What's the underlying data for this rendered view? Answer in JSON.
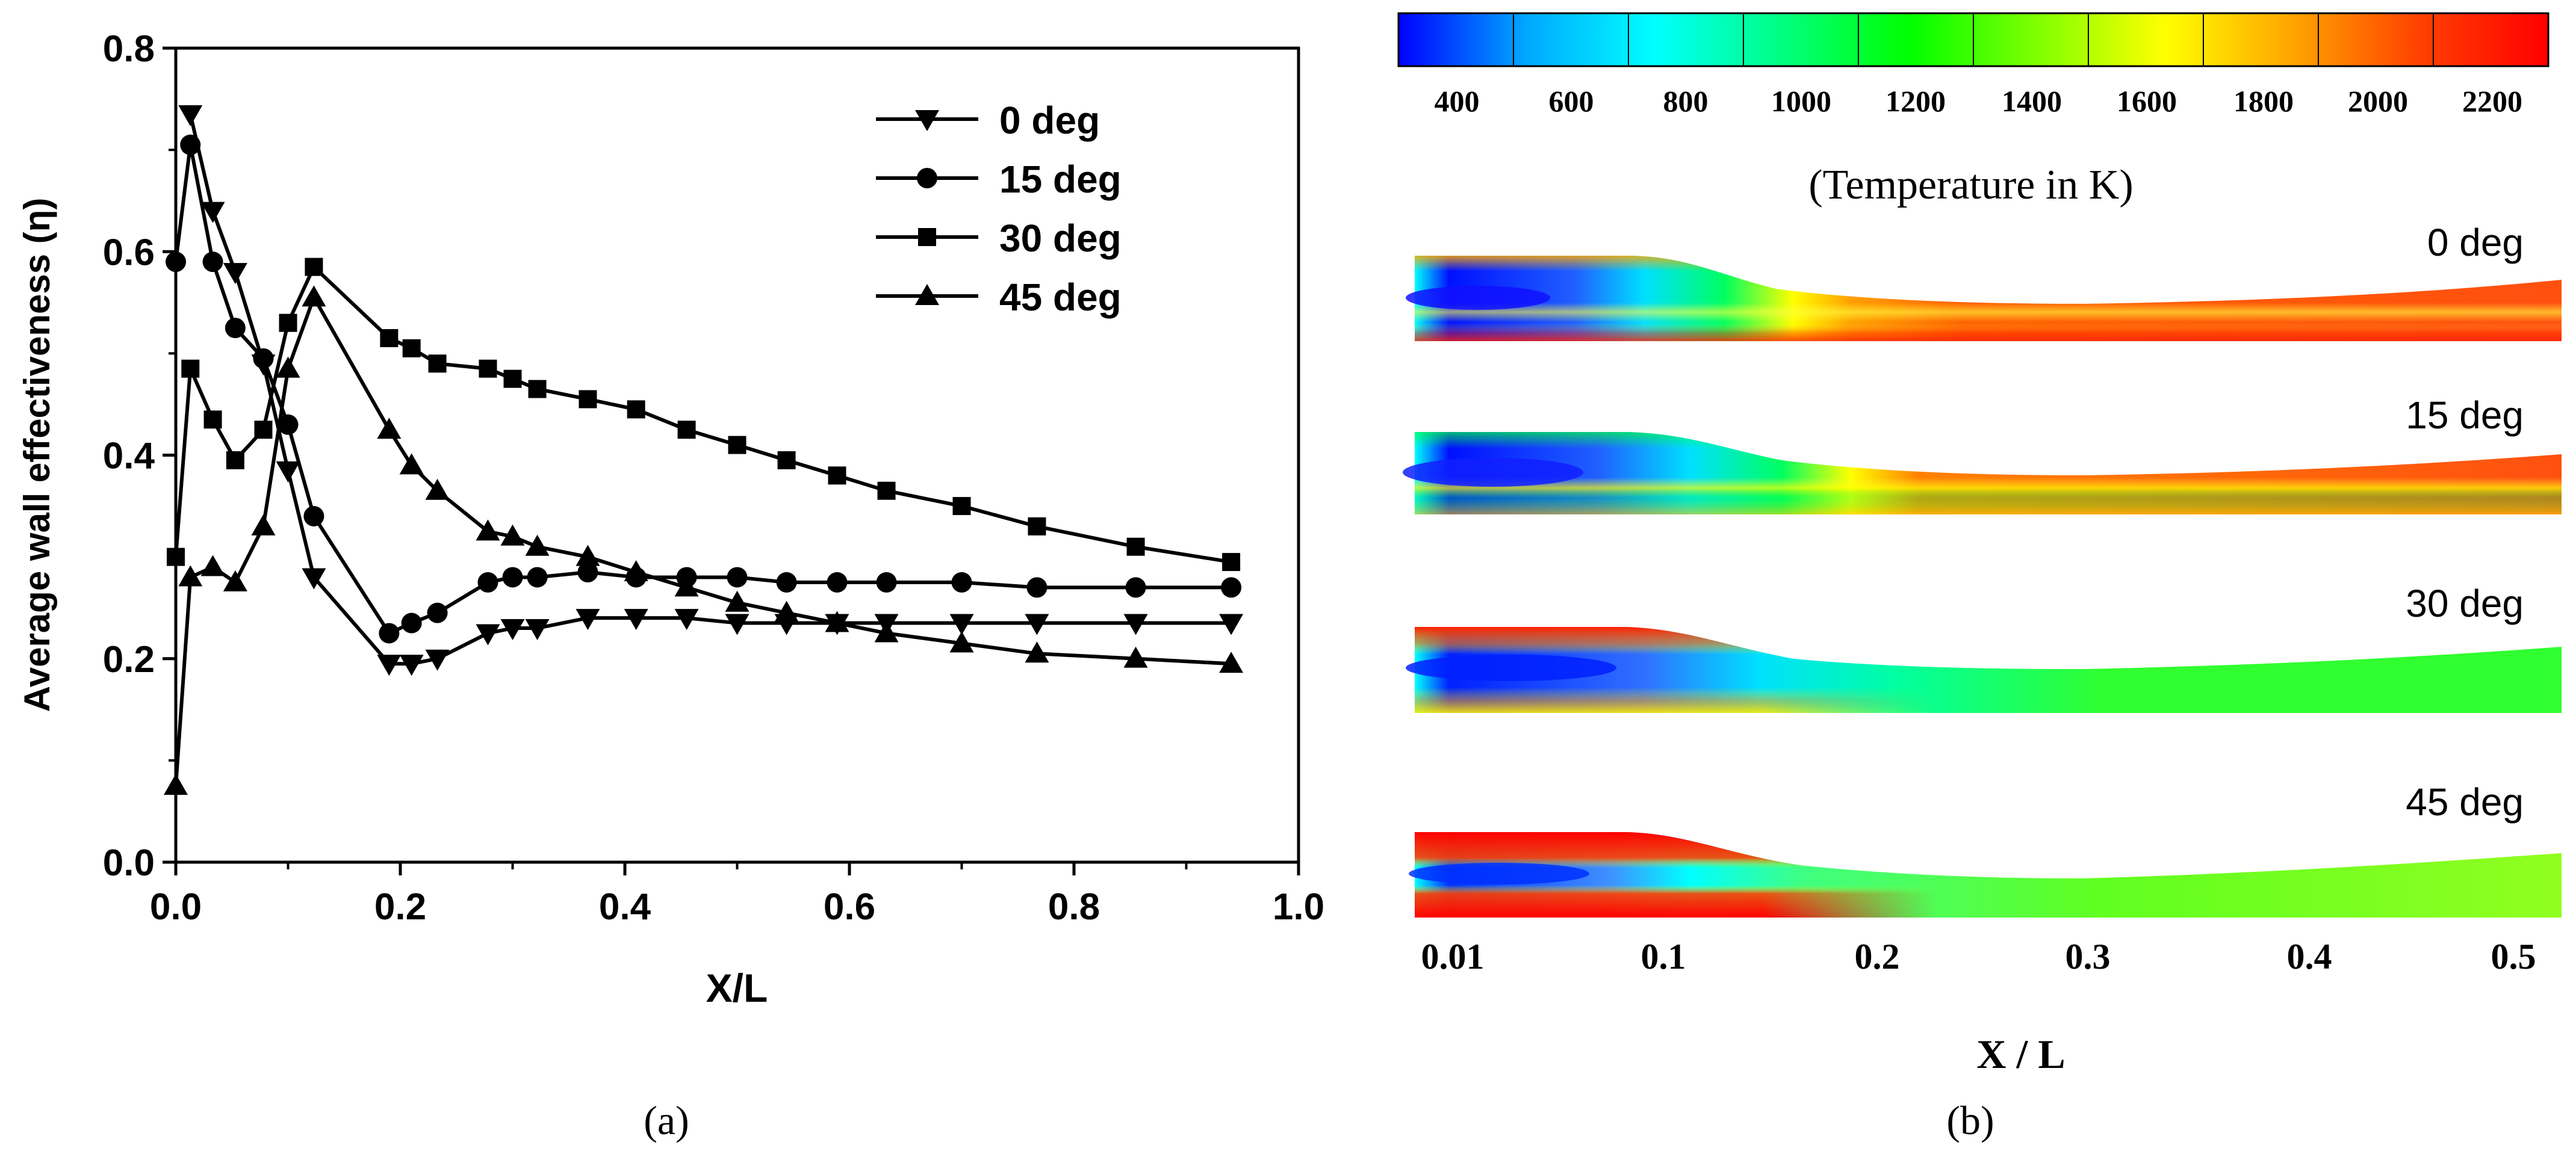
{
  "panels": {
    "a_label": "(a)",
    "b_label": "(b)"
  },
  "colorbar": {
    "ticks": [
      "400",
      "600",
      "800",
      "1000",
      "1200",
      "1400",
      "1600",
      "1800",
      "2000",
      "2200"
    ],
    "caption": "(Temperature in K)",
    "colors": [
      "#0000ff",
      "#00a8ff",
      "#00ffff",
      "#00ff80",
      "#00ff00",
      "#80ff00",
      "#ffff00",
      "#ffa500",
      "#ff4000",
      "#ff0000"
    ]
  },
  "contours": {
    "labels": [
      "0 deg",
      "15 deg",
      "30 deg",
      "45 deg"
    ],
    "x_ticks": [
      "0.01",
      "0.1",
      "0.2",
      "0.3",
      "0.4",
      "0.5"
    ],
    "x_label": "X / L"
  },
  "chart_data": {
    "type": "line",
    "xlabel": "X/L",
    "ylabel": "Average wall effectiveness (η)",
    "xlim": [
      0.0,
      1.0
    ],
    "ylim": [
      0.0,
      0.8
    ],
    "xticks": [
      "0.0",
      "0.2",
      "0.4",
      "0.6",
      "0.8",
      "1.0"
    ],
    "yticks": [
      "0.0",
      "0.2",
      "0.4",
      "0.6",
      "0.8"
    ],
    "grid": false,
    "legend_position": "top-right",
    "series": [
      {
        "name": "0 deg",
        "marker": "triangle-down",
        "x": [
          0.013,
          0.033,
          0.053,
          0.078,
          0.1,
          0.123,
          0.19,
          0.21,
          0.233,
          0.278,
          0.3,
          0.322,
          0.367,
          0.41,
          0.455,
          0.5,
          0.544,
          0.589,
          0.633,
          0.7,
          0.767,
          0.855,
          0.94
        ],
        "y": [
          0.735,
          0.64,
          0.58,
          0.49,
          0.385,
          0.28,
          0.195,
          0.195,
          0.2,
          0.225,
          0.23,
          0.23,
          0.24,
          0.24,
          0.24,
          0.235,
          0.235,
          0.235,
          0.235,
          0.235,
          0.235,
          0.235,
          0.235
        ]
      },
      {
        "name": "15 deg",
        "marker": "circle",
        "x": [
          0.0,
          0.013,
          0.033,
          0.053,
          0.078,
          0.1,
          0.123,
          0.19,
          0.21,
          0.233,
          0.278,
          0.3,
          0.322,
          0.367,
          0.41,
          0.455,
          0.5,
          0.544,
          0.589,
          0.633,
          0.7,
          0.767,
          0.855,
          0.94
        ],
        "y": [
          0.59,
          0.705,
          0.59,
          0.525,
          0.495,
          0.43,
          0.34,
          0.225,
          0.235,
          0.245,
          0.275,
          0.28,
          0.28,
          0.285,
          0.28,
          0.28,
          0.28,
          0.275,
          0.275,
          0.275,
          0.275,
          0.27,
          0.27,
          0.27
        ]
      },
      {
        "name": "30 deg",
        "marker": "square",
        "x": [
          0.0,
          0.013,
          0.033,
          0.053,
          0.078,
          0.1,
          0.123,
          0.19,
          0.21,
          0.233,
          0.278,
          0.3,
          0.322,
          0.367,
          0.41,
          0.455,
          0.5,
          0.544,
          0.589,
          0.633,
          0.7,
          0.767,
          0.855,
          0.94
        ],
        "y": [
          0.3,
          0.485,
          0.435,
          0.395,
          0.425,
          0.53,
          0.585,
          0.515,
          0.505,
          0.49,
          0.485,
          0.475,
          0.465,
          0.455,
          0.445,
          0.425,
          0.41,
          0.395,
          0.38,
          0.365,
          0.35,
          0.33,
          0.31,
          0.295
        ]
      },
      {
        "name": "45 deg",
        "marker": "triangle-up",
        "x": [
          0.0,
          0.013,
          0.033,
          0.053,
          0.078,
          0.1,
          0.123,
          0.19,
          0.21,
          0.233,
          0.278,
          0.3,
          0.322,
          0.367,
          0.41,
          0.455,
          0.5,
          0.544,
          0.589,
          0.633,
          0.7,
          0.767,
          0.855,
          0.94
        ],
        "y": [
          0.075,
          0.28,
          0.29,
          0.275,
          0.33,
          0.485,
          0.555,
          0.425,
          0.39,
          0.365,
          0.325,
          0.32,
          0.31,
          0.3,
          0.285,
          0.27,
          0.255,
          0.245,
          0.235,
          0.225,
          0.215,
          0.205,
          0.2,
          0.195
        ]
      }
    ]
  }
}
